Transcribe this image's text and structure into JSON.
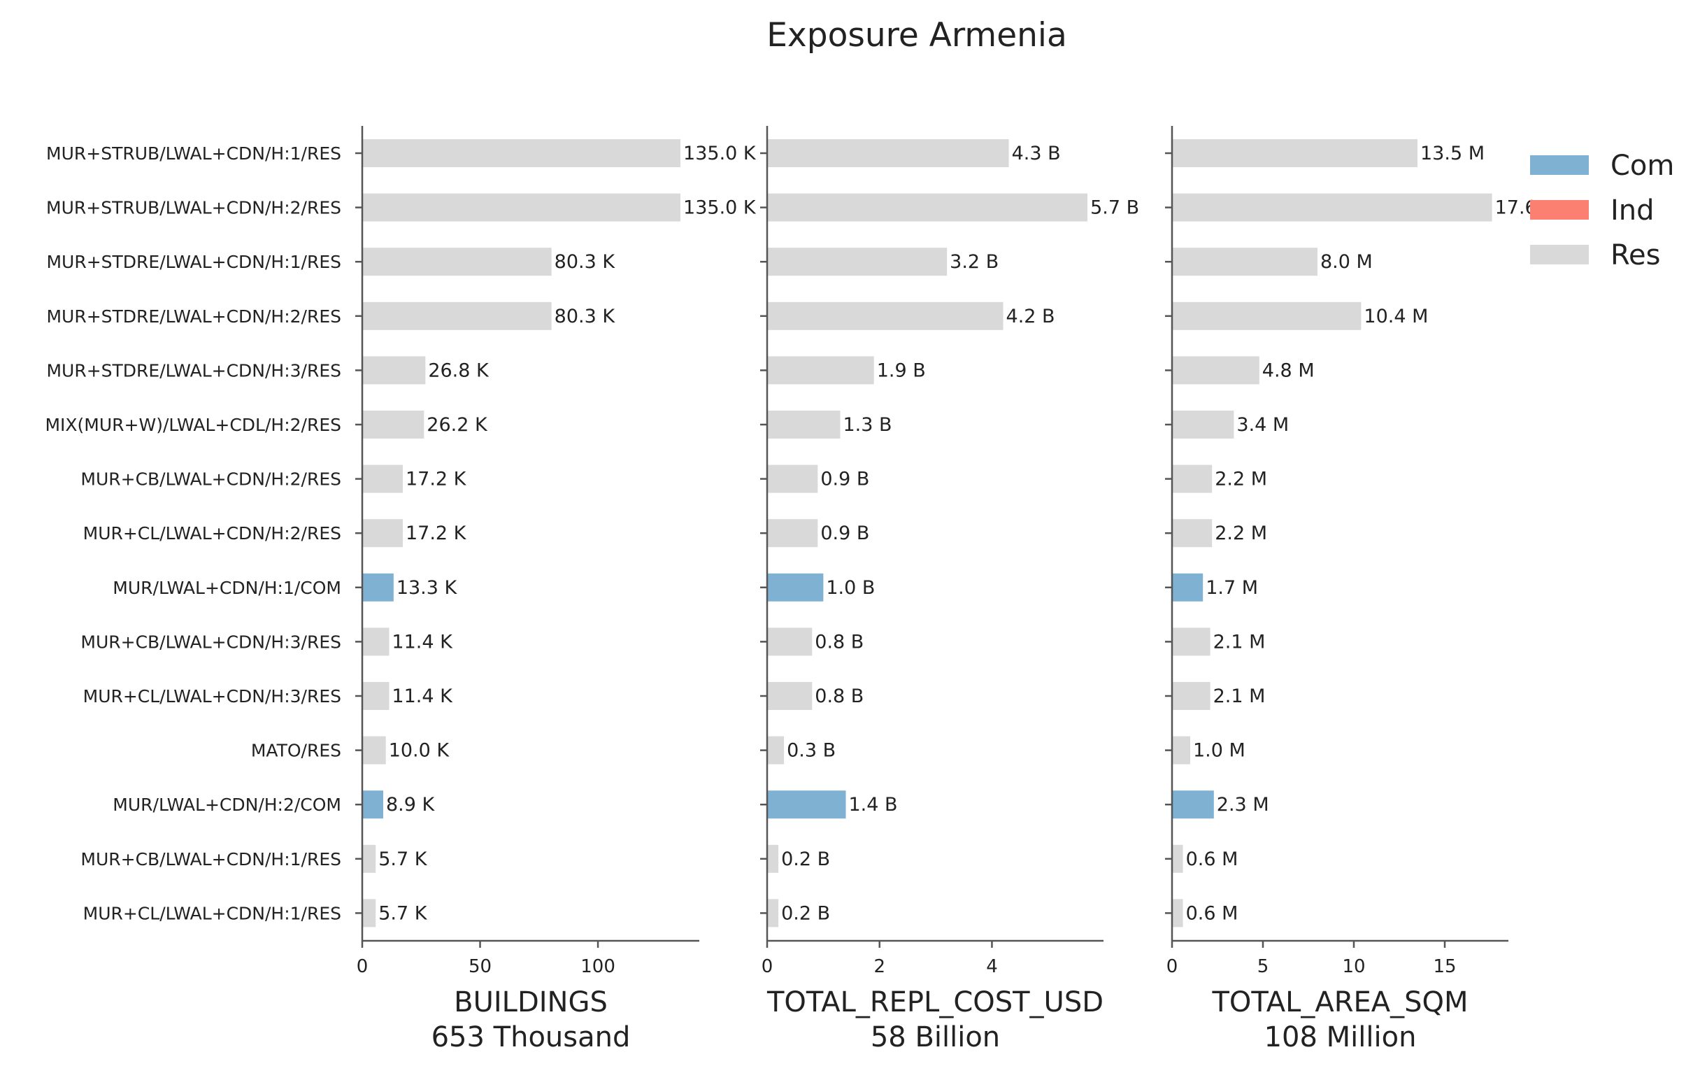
{
  "chart_data": {
    "type": "bar",
    "orientation": "horizontal",
    "title": "Exposure Armenia",
    "categories": [
      "MUR+STRUB/LWAL+CDN/H:1/RES",
      "MUR+STRUB/LWAL+CDN/H:2/RES",
      "MUR+STDRE/LWAL+CDN/H:1/RES",
      "MUR+STDRE/LWAL+CDN/H:2/RES",
      "MUR+STDRE/LWAL+CDN/H:3/RES",
      "MIX(MUR+W)/LWAL+CDL/H:2/RES",
      "MUR+CB/LWAL+CDN/H:2/RES",
      "MUR+CL/LWAL+CDN/H:2/RES",
      "MUR/LWAL+CDN/H:1/COM",
      "MUR+CB/LWAL+CDN/H:3/RES",
      "MUR+CL/LWAL+CDN/H:3/RES",
      "MATO/RES",
      "MUR/LWAL+CDN/H:2/COM",
      "MUR+CB/LWAL+CDN/H:1/RES",
      "MUR+CL/LWAL+CDN/H:1/RES"
    ],
    "occupancy": [
      "Res",
      "Res",
      "Res",
      "Res",
      "Res",
      "Res",
      "Res",
      "Res",
      "Com",
      "Res",
      "Res",
      "Res",
      "Com",
      "Res",
      "Res"
    ],
    "legend": {
      "placement": "top-right",
      "entries": [
        {
          "name": "Com",
          "color": "#7fb1d3"
        },
        {
          "name": "Ind",
          "color": "#fb8072"
        },
        {
          "name": "Res",
          "color": "#d9d9d9"
        }
      ]
    },
    "panels": [
      {
        "xlabel": "BUILDINGS",
        "subtitle": "653 Thousand",
        "xlim": [
          0,
          143
        ],
        "xticks": [
          0,
          50,
          100
        ],
        "values": [
          135.0,
          135.0,
          80.3,
          80.3,
          26.8,
          26.2,
          17.2,
          17.2,
          13.3,
          11.4,
          11.4,
          10.0,
          8.9,
          5.7,
          5.7
        ],
        "labels": [
          "135.0 K",
          "135.0 K",
          "80.3 K",
          "80.3 K",
          "26.8 K",
          "26.2 K",
          "17.2 K",
          "17.2 K",
          "13.3 K",
          "11.4 K",
          "11.4 K",
          "10.0 K",
          "8.9 K",
          "5.7 K",
          "5.7 K"
        ]
      },
      {
        "xlabel": "TOTAL_REPL_COST_USD",
        "subtitle": "58 Billion",
        "xlim": [
          0,
          5.985
        ],
        "xticks": [
          0,
          2,
          4
        ],
        "values": [
          4.3,
          5.7,
          3.2,
          4.2,
          1.9,
          1.3,
          0.9,
          0.9,
          1.0,
          0.8,
          0.8,
          0.3,
          1.4,
          0.2,
          0.2
        ],
        "labels": [
          "4.3 B",
          "5.7 B",
          "3.2 B",
          "4.2 B",
          "1.9 B",
          "1.3 B",
          "0.9 B",
          "0.9 B",
          "1.0 B",
          "0.8 B",
          "0.8 B",
          "0.3 B",
          "1.4 B",
          "0.2 B",
          "0.2 B"
        ]
      },
      {
        "xlabel": "TOTAL_AREA_SQM",
        "subtitle": "108 Million",
        "xlim": [
          0,
          18.5
        ],
        "xticks": [
          0,
          5,
          10,
          15
        ],
        "values": [
          13.5,
          17.6,
          8.0,
          10.4,
          4.8,
          3.4,
          2.2,
          2.2,
          1.7,
          2.1,
          2.1,
          1.0,
          2.3,
          0.6,
          0.6
        ],
        "labels": [
          "13.5 M",
          "17.6 M",
          "8.0 M",
          "10.4 M",
          "4.8 M",
          "3.4 M",
          "2.2 M",
          "2.2 M",
          "1.7 M",
          "2.1 M",
          "2.1 M",
          "1.0 M",
          "2.3 M",
          "0.6 M",
          "0.6 M"
        ]
      }
    ]
  }
}
